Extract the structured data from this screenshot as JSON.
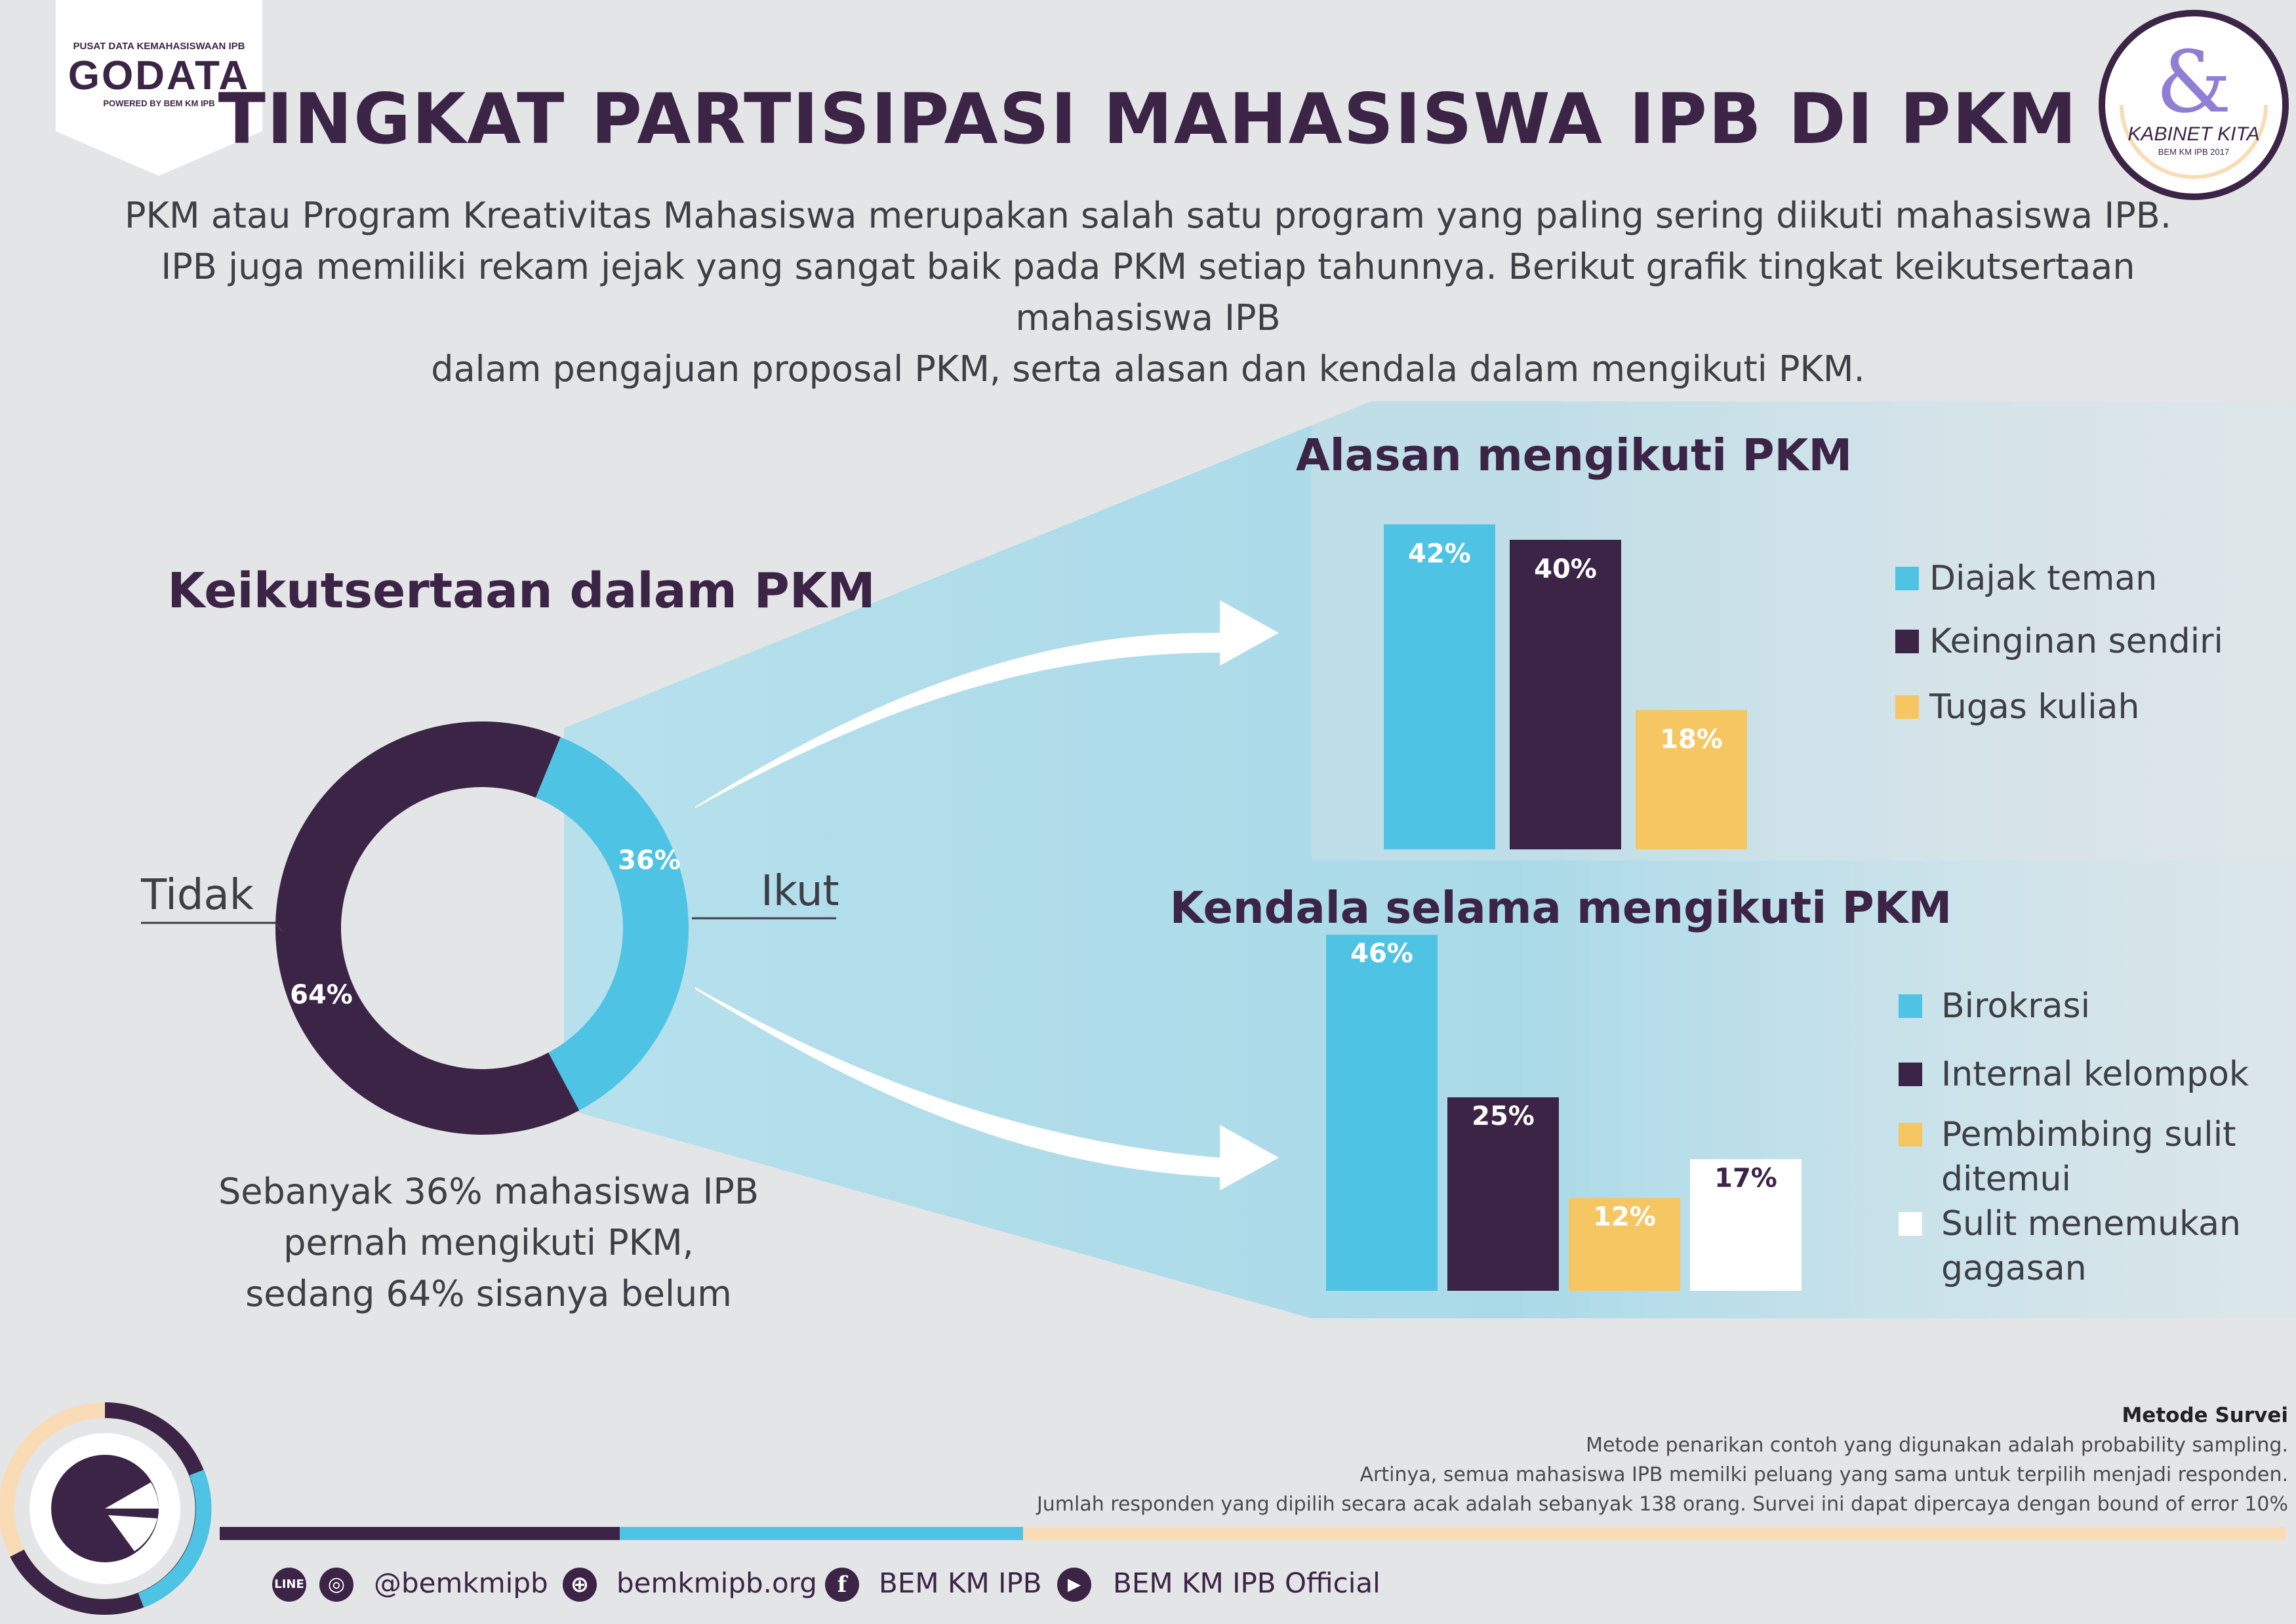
{
  "header": {
    "badge_top": "PUSAT DATA KEMAHASISWAAN IPB",
    "badge_logo": "GODATA",
    "badge_bottom": "POWERED BY BEM KM IPB",
    "kabinet_name": "KABINET KITA",
    "kabinet_sub": "BEM KM IPB 2017"
  },
  "title": "TINGKAT PARTISIPASI MAHASISWA IPB DI PKM",
  "intro": [
    "PKM atau Program Kreativitas Mahasiswa merupakan salah satu program yang paling sering diikuti mahasiswa IPB.",
    "IPB juga memiliki rekam jejak yang sangat baik pada PKM setiap tahunnya. Berikut grafik tingkat keikutsertaan mahasiswa IPB",
    "dalam pengajuan proposal PKM, serta alasan dan kendala dalam mengikuti PKM."
  ],
  "colors": {
    "cyan": "#4fc3e3",
    "purple": "#3c2447",
    "yellow": "#f6c663",
    "white": "#ffffff",
    "peach": "#f9dcb6"
  },
  "chart_data": [
    {
      "type": "pie",
      "title": "Keikutsertaan dalam PKM",
      "categories": [
        "Ikut",
        "Tidak"
      ],
      "values": [
        36,
        64
      ],
      "data_labels": [
        "36%",
        "64%"
      ],
      "colors": [
        "#4fc3e3",
        "#3c2447"
      ],
      "hole": "donut"
    },
    {
      "type": "bar",
      "title": "Alasan mengikuti PKM",
      "categories": [
        "Diajak teman",
        "Keinginan sendiri",
        "Tugas kuliah"
      ],
      "values": [
        42,
        40,
        18
      ],
      "data_labels": [
        "42%",
        "40%",
        "18%"
      ],
      "colors": [
        "#4fc3e3",
        "#3c2447",
        "#f6c663"
      ],
      "legend": "right"
    },
    {
      "type": "bar",
      "title": "Kendala selama mengikuti PKM",
      "categories": [
        "Birokrasi",
        "Internal kelompok",
        "Pembimbing sulit ditemui",
        "Sulit menemukan gagasan"
      ],
      "values": [
        46,
        25,
        12,
        17
      ],
      "data_labels": [
        "46%",
        "25%",
        "12%",
        "17%"
      ],
      "colors": [
        "#4fc3e3",
        "#3c2447",
        "#f6c663",
        "#ffffff"
      ],
      "legend": "right"
    }
  ],
  "donut_caption": [
    "Sebanyak 36% mahasiswa IPB",
    "pernah mengikuti PKM,",
    "sedang 64% sisanya belum"
  ],
  "kendala_legend_lines": {
    "pembimbing": [
      "Pembimbing sulit",
      "ditemui"
    ],
    "gagasan": [
      "Sulit menemukan",
      "gagasan"
    ]
  },
  "survey": {
    "heading": "Metode Survei",
    "lines": [
      "Metode penarikan contoh yang digunakan adalah probability sampling.",
      "Artinya, semua mahasiswa IPB memilki peluang yang sama untuk terpilih menjadi responden.",
      "Jumlah responden yang dipilih secara acak adalah sebanyak 138 orang. Survei ini dapat dipercaya dengan bound of error 10%"
    ]
  },
  "footer": {
    "line_icon": "LINE",
    "instagram": "@bemkmipb",
    "website": "bemkmipb.org",
    "facebook": "BEM KM IPB",
    "youtube": "BEM KM IPB Official",
    "icons": [
      "line-icon",
      "instagram-icon",
      "globe-icon",
      "facebook-icon",
      "youtube-icon"
    ]
  }
}
